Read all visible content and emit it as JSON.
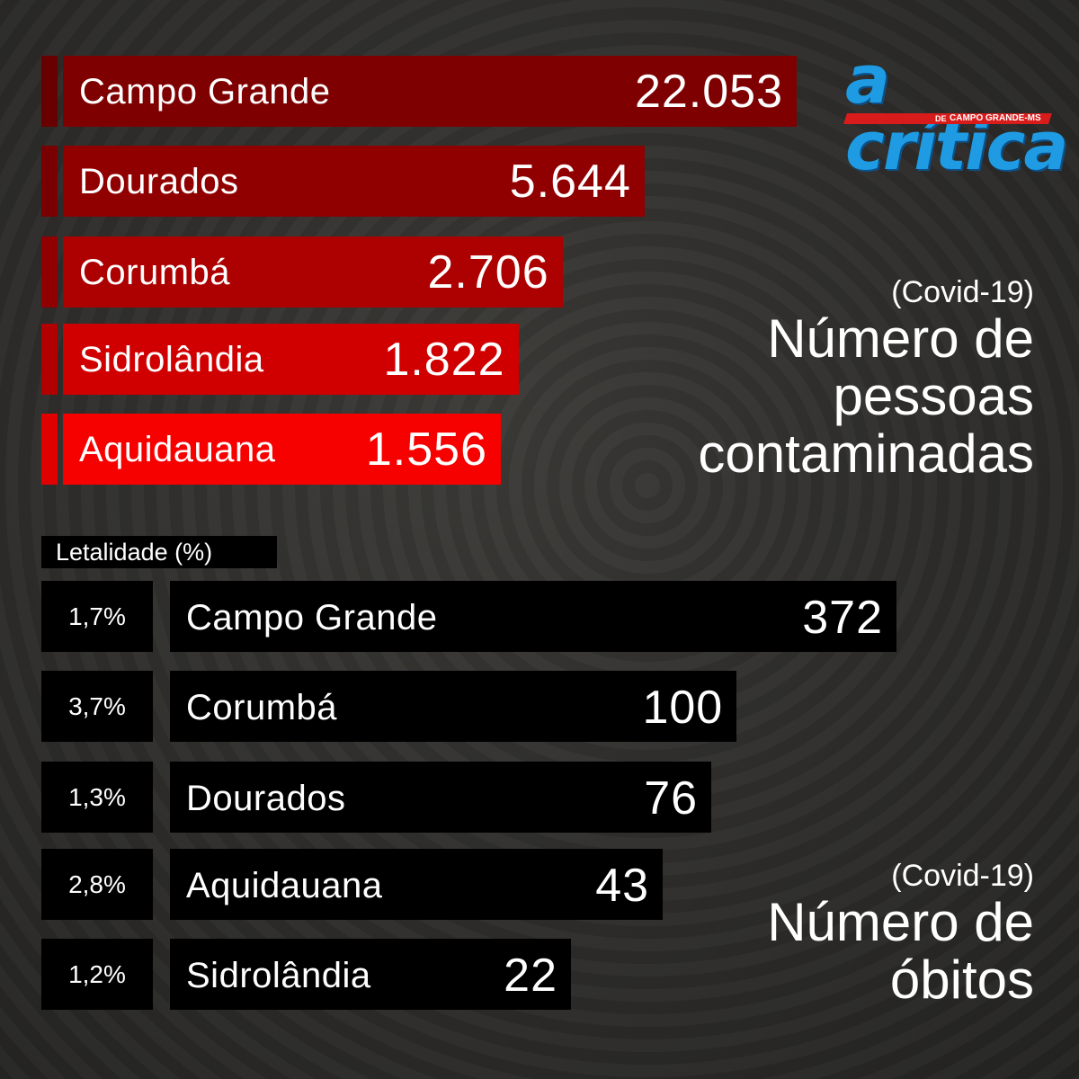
{
  "logo": {
    "word": "a crítica",
    "de": "DE",
    "tagline": "CAMPO GRANDE-MS"
  },
  "infected": {
    "subtitle": "(Covid-19)",
    "title_lines": [
      "Número de",
      "pessoas",
      "contaminadas"
    ]
  },
  "deaths": {
    "subtitle": "(Covid-19)",
    "title_lines": [
      "Número de",
      "óbitos"
    ],
    "lethality_header": "Letalidade (%)"
  },
  "colors": {
    "infected_bars": [
      "#7e0000",
      "#900000",
      "#ad0000",
      "#d00000",
      "#f70000"
    ],
    "infected_stubs": [
      "#680000",
      "#780000",
      "#900000",
      "#b00000",
      "#e00000"
    ],
    "death_bars": "#000000",
    "logo_blue": "#1e9be3",
    "logo_red": "#d81c1c"
  },
  "chart_data": [
    {
      "type": "bar",
      "orientation": "horizontal",
      "categories": [
        "Campo Grande",
        "Dourados",
        "Corumbá",
        "Sidrolândia",
        "Aquidauana"
      ],
      "values": [
        22053,
        5644,
        2706,
        1822,
        1556
      ],
      "value_labels": [
        "22.053",
        "5.644",
        "2.706",
        "1.822",
        "1.556"
      ]
    },
    {
      "type": "bar",
      "orientation": "horizontal",
      "categories": [
        "Campo Grande",
        "Corumbá",
        "Dourados",
        "Aquidauana",
        "Sidrolândia"
      ],
      "values": [
        372,
        100,
        76,
        43,
        22
      ],
      "value_labels": [
        "372",
        "100",
        "76",
        "43",
        "22"
      ],
      "lethality": [
        "1,7%",
        "3,7%",
        "1,3%",
        "2,8%",
        "1,2%"
      ]
    }
  ]
}
